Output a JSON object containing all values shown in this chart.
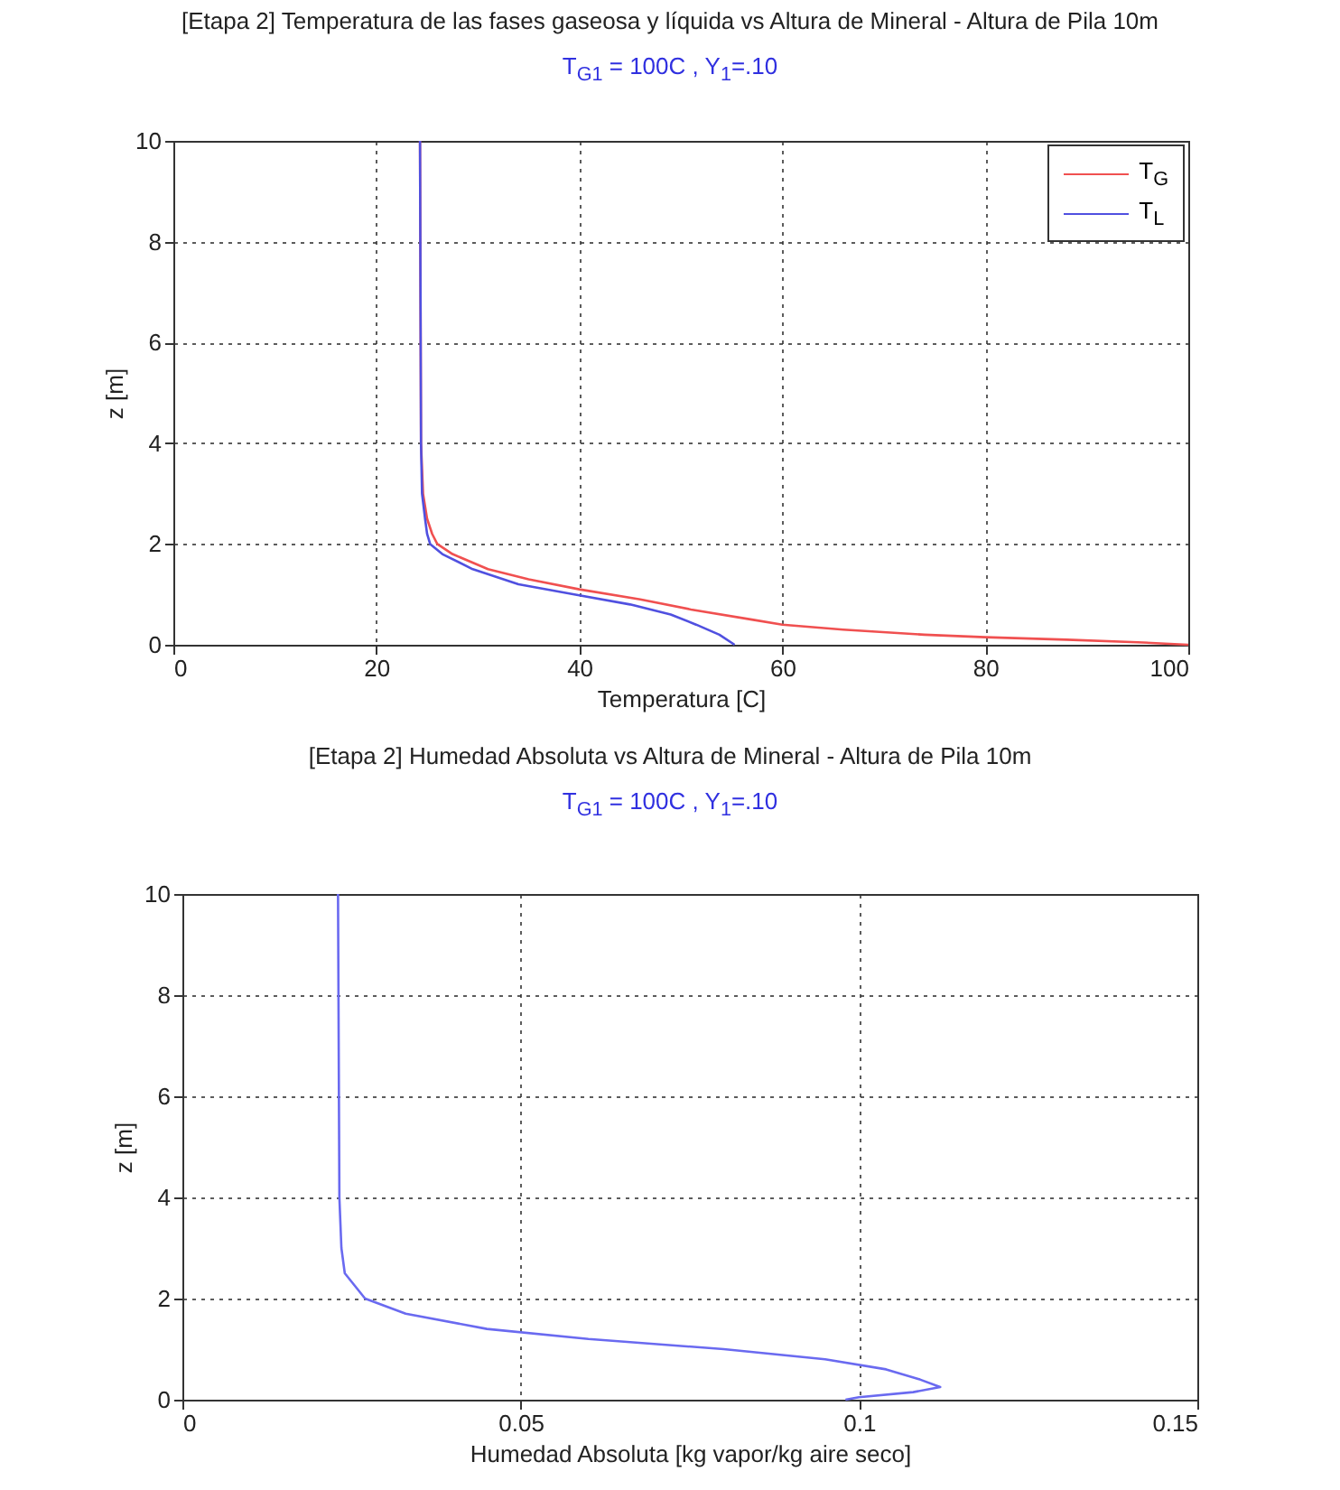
{
  "chart_data": [
    {
      "type": "line",
      "title": "[Etapa 2] Temperatura de las fases gaseosa y líquida vs Altura de Mineral - Altura de Pila 10m",
      "subtitle": "T$_{G1}$ = 100C , Y$_{1}$=.10",
      "xlabel": "Temperatura [C]",
      "ylabel": "z [m]",
      "xlim": [
        0,
        100
      ],
      "xticks": [
        0,
        20,
        40,
        60,
        80,
        100
      ],
      "ylim": [
        0,
        10
      ],
      "yticks": [
        0,
        2,
        4,
        6,
        8,
        10
      ],
      "grid": true,
      "legend": "top right",
      "line_style": "solid",
      "series": [
        {
          "name": "T$_{G}$",
          "color": "#f05050",
          "x": [
            24.3,
            24.4,
            24.6,
            25.0,
            25.5,
            26.0,
            27.5,
            31,
            35,
            40,
            46,
            51,
            57,
            60,
            66,
            74,
            80,
            88,
            95,
            100
          ],
          "values": [
            10,
            4,
            3,
            2.5,
            2.2,
            2.0,
            1.8,
            1.5,
            1.3,
            1.1,
            0.9,
            0.7,
            0.5,
            0.4,
            0.3,
            0.2,
            0.15,
            0.1,
            0.05,
            0
          ]
        },
        {
          "name": "T$_{L}$",
          "color": "#5050e0",
          "x": [
            24.3,
            24.4,
            24.5,
            24.8,
            25.0,
            25.3,
            26.5,
            29.5,
            34,
            39.5,
            45,
            49,
            51.5,
            53.8,
            55.3
          ],
          "values": [
            10,
            4,
            3,
            2.5,
            2.2,
            2.0,
            1.8,
            1.5,
            1.2,
            1.0,
            0.8,
            0.6,
            0.4,
            0.2,
            0
          ]
        }
      ]
    },
    {
      "type": "line",
      "title": "[Etapa 2] Humedad Absoluta vs Altura de Mineral - Altura de Pila 10m",
      "subtitle": "T$_{G1}$ = 100C , Y$_{1}$=.10",
      "xlabel": "Humedad Absoluta [kg vapor/kg aire seco]",
      "ylabel": "z [m]",
      "xlim": [
        0,
        0.15
      ],
      "xticks": [
        0,
        0.05,
        0.1,
        0.15
      ],
      "ylim": [
        0,
        10
      ],
      "yticks": [
        0,
        2,
        4,
        6,
        8,
        10
      ],
      "grid": true,
      "line_style": "solid",
      "series": [
        {
          "color": "#6a6af0",
          "x": [
            0.023,
            0.0232,
            0.0235,
            0.024,
            0.027,
            0.033,
            0.045,
            0.06,
            0.08,
            0.095,
            0.104,
            0.109,
            0.112,
            0.108,
            0.1,
            0.098
          ],
          "values": [
            10,
            4,
            3,
            2.5,
            2.0,
            1.7,
            1.4,
            1.2,
            1.0,
            0.8,
            0.6,
            0.4,
            0.25,
            0.15,
            0.05,
            0
          ]
        }
      ]
    }
  ]
}
